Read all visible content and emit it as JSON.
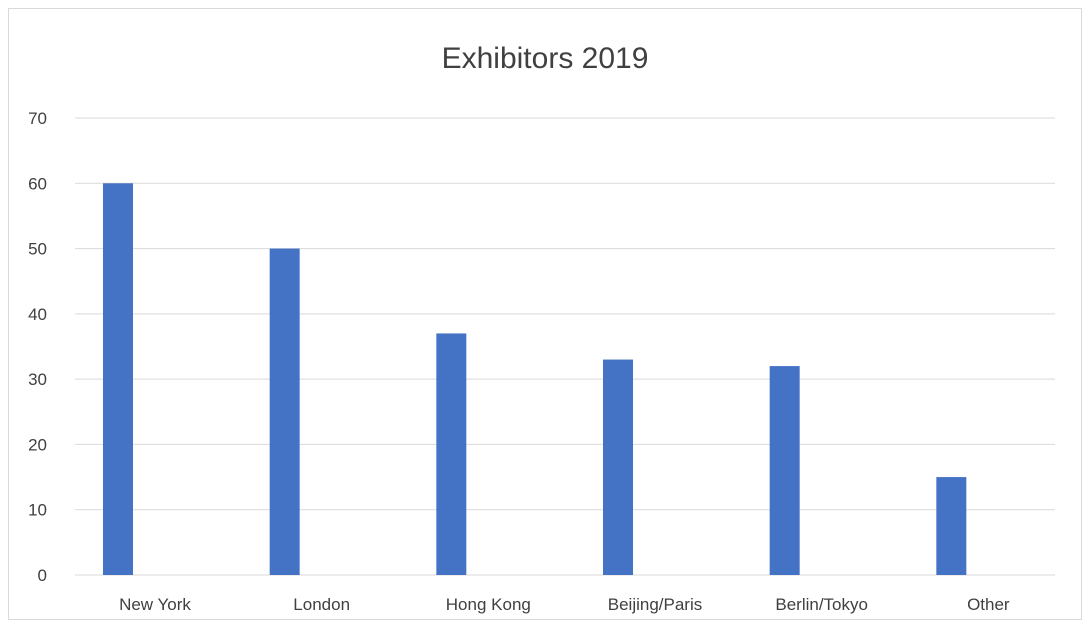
{
  "chart_data": {
    "type": "bar",
    "title": "Exhibitors 2019",
    "xlabel": "",
    "ylabel": "",
    "categories": [
      "New York",
      "London",
      "Hong Kong",
      "Beijing/Paris",
      "Berlin/Tokyo",
      "Other"
    ],
    "values": [
      60,
      50,
      37,
      33,
      32,
      15
    ],
    "ylim": [
      0,
      70
    ],
    "yticks": [
      0,
      10,
      20,
      30,
      40,
      50,
      60,
      70
    ],
    "grid": true,
    "legend": "none",
    "bar_color": "#4472C4",
    "grid_color": "#d9d9d9"
  }
}
